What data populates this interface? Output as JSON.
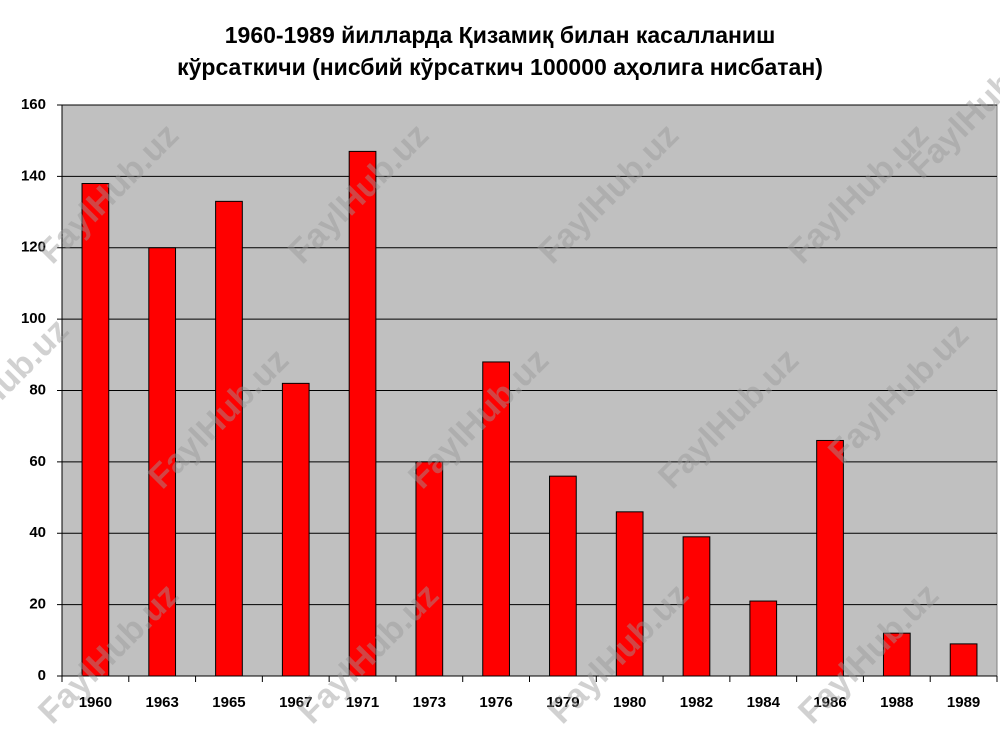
{
  "chart_data": {
    "type": "bar",
    "title": [
      "1960-1989 йилларда Қизамиқ билан касалланиш",
      "кўрсаткичи (нисбий кўрсаткич 100000 аҳолига нисбатан)"
    ],
    "watermark": "FaylHub.uz",
    "categories": [
      "1960",
      "1963",
      "1965",
      "1967",
      "1971",
      "1973",
      "1976",
      "1979",
      "1980",
      "1982",
      "1984",
      "1986",
      "1988",
      "1989"
    ],
    "values": [
      138,
      120,
      133,
      82,
      147,
      60,
      88,
      56,
      46,
      39,
      21,
      66,
      12,
      9
    ],
    "color": "#ff0000",
    "ylim": [
      0,
      160
    ],
    "yticks": [
      0,
      20,
      40,
      60,
      80,
      100,
      120,
      140,
      160
    ],
    "grid": true
  }
}
